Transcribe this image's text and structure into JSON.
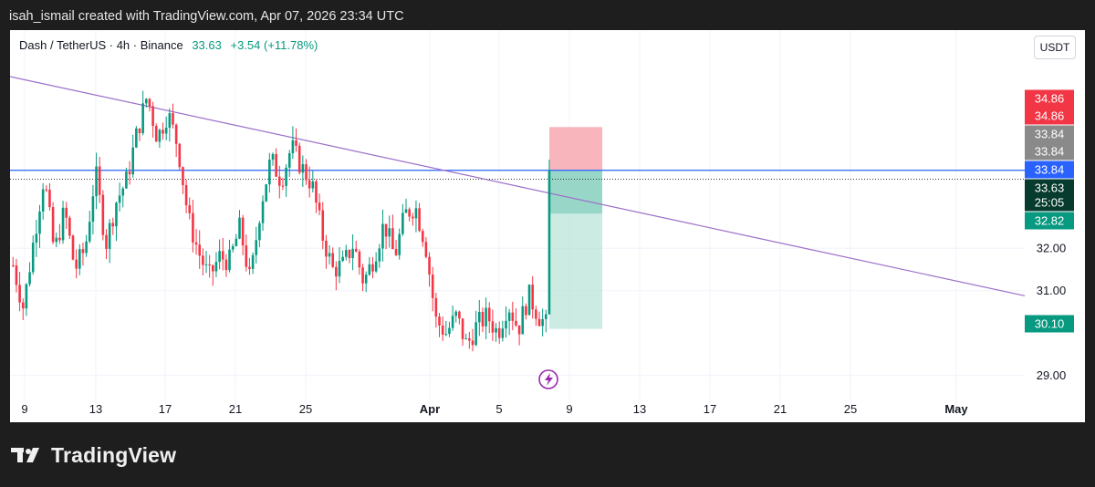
{
  "header": {
    "text": "isah_ismail created with TradingView.com, Apr 07, 2026 23:34 UTC"
  },
  "legend": {
    "symbol": "Dash / TetherUS · 4h · Binance",
    "price": "33.63",
    "change": "+3.54 (+11.78%)"
  },
  "currency_button": "USDT",
  "footer": {
    "brand": "TradingView"
  },
  "colors": {
    "up": "#089981",
    "down": "#f23645",
    "trendline": "#9c6fc9",
    "hline": "#2962ff",
    "stop_zone": "#f7a9b0",
    "target_zone": "#b9e4d9",
    "profit_zone": "#8fd3c3"
  },
  "chart_data": {
    "type": "candlestick",
    "y_axis": {
      "min": 28.5,
      "max": 36.2,
      "ticks": [
        "29.00",
        "31.00",
        "32.00"
      ]
    },
    "x_axis": {
      "ticks": [
        "9",
        "13",
        "17",
        "21",
        "25",
        "Apr",
        "5",
        "9",
        "13",
        "17",
        "21",
        "25",
        "May"
      ]
    },
    "trendline": {
      "start_price": 36.05,
      "end_price": 30.88
    },
    "horizontal_line": {
      "price": 33.84
    },
    "current_price_line": {
      "price": 33.63
    },
    "position": {
      "type": "short",
      "entry": 33.84,
      "stop": 34.86,
      "target": 30.1,
      "current": 32.82
    },
    "price_labels": [
      {
        "text": "34.86",
        "price": 34.86,
        "bg": "#f23645",
        "color": "#ffffff"
      },
      {
        "text": "34.86",
        "price": 34.86,
        "bg": "#f23645",
        "color": "#ffffff"
      },
      {
        "text": "33.84",
        "price": 33.84,
        "bg": "#8a8a8a",
        "color": "#ffffff"
      },
      {
        "text": "33.84",
        "price": 33.84,
        "bg": "#8a8a8a",
        "color": "#ffffff"
      },
      {
        "text": "33.84",
        "price": 33.84,
        "bg": "#2962ff",
        "color": "#ffffff"
      },
      {
        "text": "33.63",
        "price": 33.63,
        "bg": "#063b2d",
        "color": "#ffffff"
      },
      {
        "text": "25:05",
        "price": 33.63,
        "bg": "#063b2d",
        "color": "#ffffff"
      },
      {
        "text": "32.82",
        "price": 32.82,
        "bg": "#089981",
        "color": "#ffffff"
      },
      {
        "text": "30.10",
        "price": 30.1,
        "bg": "#089981",
        "color": "#ffffff"
      }
    ],
    "candle_path": [
      31.6,
      30.6,
      32.2,
      33.7,
      31.9,
      32.9,
      31.5,
      32.0,
      33.8,
      32.1,
      33.1,
      33.6,
      34.7,
      35.6,
      34.6,
      35.2,
      34.4,
      32.7,
      31.9,
      31.3,
      31.8,
      31.7,
      32.5,
      31.2,
      33.0,
      34.1,
      33.6,
      34.4,
      33.9,
      33.5,
      32.3,
      31.5,
      31.6,
      32.1,
      31.2,
      31.8,
      32.6,
      31.8,
      32.8,
      33.0,
      32.1,
      30.3,
      30.0,
      30.4,
      29.7,
      30.2,
      30.4,
      30.0,
      30.7,
      30.1,
      30.9,
      30.4,
      30.1,
      33.84
    ]
  }
}
